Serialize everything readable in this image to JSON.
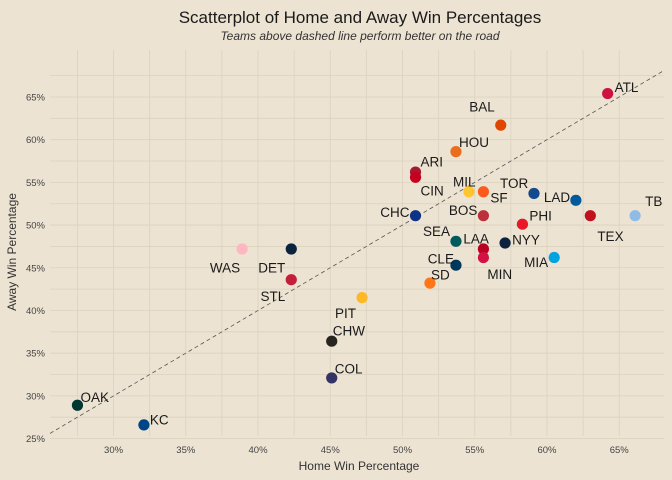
{
  "chart_data": {
    "type": "scatter",
    "title": "Scatterplot of Home and Away Win Percentages",
    "subtitle": "Teams above dashed line perform better on the road",
    "xlabel": "Home Win Percentage",
    "ylabel": "Away Win Percentage",
    "xlim": [
      0.256,
      0.681
    ],
    "ylim": [
      0.253,
      0.705
    ],
    "x_ticks": [
      0.3,
      0.35,
      0.4,
      0.45,
      0.5,
      0.55,
      0.6,
      0.65
    ],
    "x_tick_labels": [
      "30%",
      "35%",
      "40%",
      "45%",
      "50%",
      "55%",
      "60%",
      "65%"
    ],
    "y_ticks": [
      0.25,
      0.3,
      0.35,
      0.4,
      0.45,
      0.5,
      0.55,
      0.6,
      0.65
    ],
    "y_tick_labels": [
      "25%",
      "30%",
      "35%",
      "40%",
      "45%",
      "50%",
      "55%",
      "60%",
      "65%"
    ],
    "reference_line": "y = x (dashed)",
    "grid": true,
    "points": [
      {
        "label": "ATL",
        "x": 0.642,
        "y": 0.654,
        "color": "#ce1141"
      },
      {
        "label": "BAL",
        "x": 0.568,
        "y": 0.617,
        "color": "#df4601"
      },
      {
        "label": "HOU",
        "x": 0.537,
        "y": 0.586,
        "color": "#eb6e1f"
      },
      {
        "label": "ARI",
        "x": 0.509,
        "y": 0.562,
        "color": "#a71930"
      },
      {
        "label": "CIN",
        "x": 0.509,
        "y": 0.556,
        "color": "#c6011f"
      },
      {
        "label": "MIL",
        "x": 0.546,
        "y": 0.539,
        "color": "#ffc52f"
      },
      {
        "label": "SF",
        "x": 0.556,
        "y": 0.539,
        "color": "#fd5a1e"
      },
      {
        "label": "TOR",
        "x": 0.591,
        "y": 0.537,
        "color": "#134a8e"
      },
      {
        "label": "LAD",
        "x": 0.62,
        "y": 0.529,
        "color": "#005a9c"
      },
      {
        "label": "CHC",
        "x": 0.509,
        "y": 0.511,
        "color": "#0e3386"
      },
      {
        "label": "BOS",
        "x": 0.556,
        "y": 0.511,
        "color": "#bd3039"
      },
      {
        "label": "TEX",
        "x": 0.63,
        "y": 0.511,
        "color": "#c0111f"
      },
      {
        "label": "TB",
        "x": 0.661,
        "y": 0.511,
        "color": "#8fbce6"
      },
      {
        "label": "PHI",
        "x": 0.583,
        "y": 0.501,
        "color": "#e81828"
      },
      {
        "label": "SEA",
        "x": 0.537,
        "y": 0.481,
        "color": "#005c5c"
      },
      {
        "label": "NYY",
        "x": 0.571,
        "y": 0.479,
        "color": "#0c2340"
      },
      {
        "label": "LAA",
        "x": 0.556,
        "y": 0.472,
        "color": "#ba0021"
      },
      {
        "label": "WAS",
        "x": 0.389,
        "y": 0.472,
        "color": "#ffb6c1"
      },
      {
        "label": "DET",
        "x": 0.423,
        "y": 0.472,
        "color": "#0c2340"
      },
      {
        "label": "MIN",
        "x": 0.556,
        "y": 0.462,
        "color": "#d31145"
      },
      {
        "label": "MIA",
        "x": 0.605,
        "y": 0.462,
        "color": "#00a3e0"
      },
      {
        "label": "CLE",
        "x": 0.537,
        "y": 0.453,
        "color": "#00385d"
      },
      {
        "label": "SD",
        "x": 0.519,
        "y": 0.432,
        "color": "#ff7518"
      },
      {
        "label": "STL",
        "x": 0.423,
        "y": 0.436,
        "color": "#c41e3a"
      },
      {
        "label": "PIT",
        "x": 0.472,
        "y": 0.415,
        "color": "#fdb827"
      },
      {
        "label": "CHW",
        "x": 0.451,
        "y": 0.364,
        "color": "#27251f"
      },
      {
        "label": "COL",
        "x": 0.451,
        "y": 0.321,
        "color": "#333366"
      },
      {
        "label": "OAK",
        "x": 0.275,
        "y": 0.289,
        "color": "#003831"
      },
      {
        "label": "KC",
        "x": 0.321,
        "y": 0.266,
        "color": "#004687"
      }
    ]
  }
}
